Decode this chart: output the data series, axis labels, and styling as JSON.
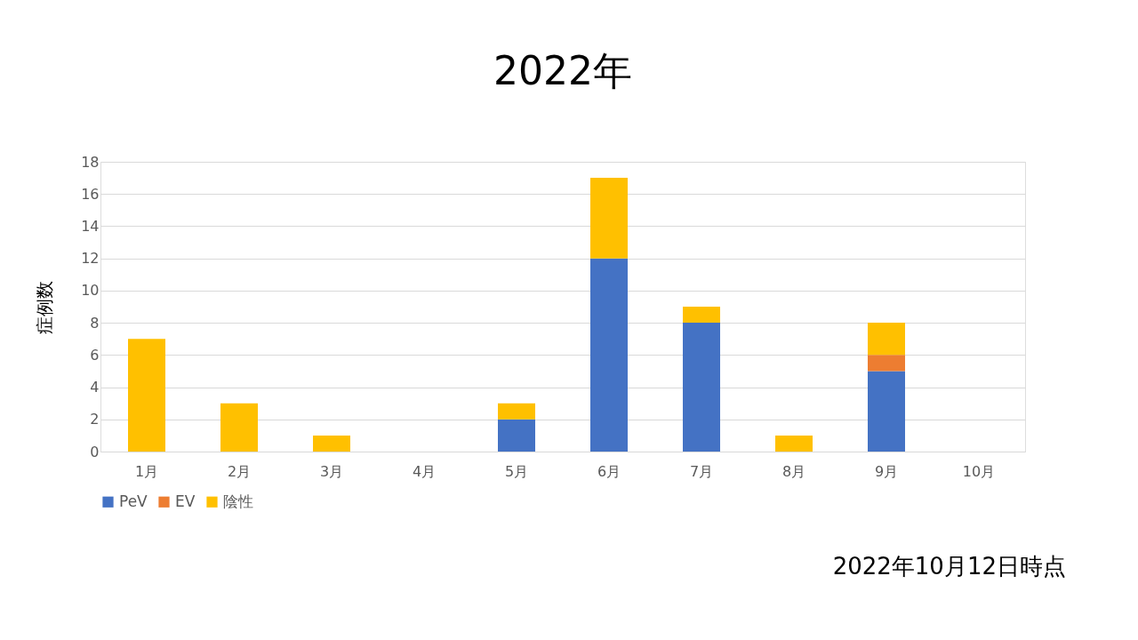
{
  "chart_data": {
    "type": "bar",
    "title": "2022年",
    "ylabel": "症例数",
    "stacked": true,
    "categories": [
      "1月",
      "2月",
      "3月",
      "4月",
      "5月",
      "6月",
      "7月",
      "8月",
      "9月",
      "10月"
    ],
    "series": [
      {
        "name": "PeV",
        "color": "#4472c4",
        "values": [
          null,
          null,
          null,
          null,
          2,
          12,
          8,
          null,
          5,
          null
        ]
      },
      {
        "name": "EV",
        "color": "#ed7d31",
        "values": [
          null,
          null,
          null,
          null,
          null,
          null,
          null,
          null,
          1,
          null
        ]
      },
      {
        "name": "陰性",
        "color": "#ffc000",
        "values": [
          7,
          3,
          1,
          null,
          1,
          5,
          1,
          1,
          2,
          null
        ]
      }
    ],
    "ylim": [
      0,
      18
    ],
    "yticks": [
      0,
      2,
      4,
      6,
      8,
      10,
      12,
      14,
      16,
      18
    ],
    "grid": "y",
    "legend": "bottom",
    "annotations": [
      "2022年10月12日時点"
    ]
  }
}
